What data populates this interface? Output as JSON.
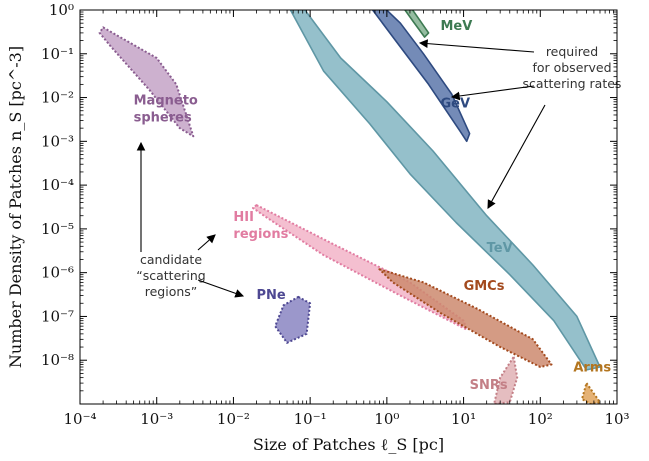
{
  "chart_data": {
    "type": "area",
    "xlabel": "Size of Patches ℓ_S [pc]",
    "ylabel": "Number Density of Patches n_S [pc^-3]",
    "xscale": "log",
    "yscale": "log",
    "xlim": [
      0.0001,
      1000
    ],
    "ylim": [
      1e-09,
      1
    ],
    "x_ticks": [
      {
        "label": "10⁻⁴",
        "value": 0.0001
      },
      {
        "label": "10⁻³",
        "value": 0.001
      },
      {
        "label": "10⁻²",
        "value": 0.01
      },
      {
        "label": "10⁻¹",
        "value": 0.1
      },
      {
        "label": "10⁰",
        "value": 1
      },
      {
        "label": "10¹",
        "value": 10
      },
      {
        "label": "10²",
        "value": 100
      },
      {
        "label": "10³",
        "value": 1000
      }
    ],
    "y_ticks": [
      {
        "label": "10⁰",
        "value": 1
      },
      {
        "label": "10⁻¹",
        "value": 0.1
      },
      {
        "label": "10⁻²",
        "value": 0.01
      },
      {
        "label": "10⁻³",
        "value": 0.001
      },
      {
        "label": "10⁻⁴",
        "value": 0.0001
      },
      {
        "label": "10⁻⁵",
        "value": 1e-05
      },
      {
        "label": "10⁻⁶",
        "value": 1e-06
      },
      {
        "label": "10⁻⁷",
        "value": 1e-07
      },
      {
        "label": "10⁻⁸",
        "value": 1e-08
      }
    ],
    "series": [
      {
        "name": "TeV",
        "kind": "required",
        "color": "#8fbdc8",
        "stroke": "#5f97a5",
        "points": [
          [
            0.07,
            1.6
          ],
          [
            0.25,
            0.08
          ],
          [
            1,
            0.008
          ],
          [
            4,
            0.0006
          ],
          [
            20,
            2e-05
          ],
          [
            80,
            1.5e-06
          ],
          [
            300,
            1e-07
          ],
          [
            600,
            7e-09
          ],
          [
            400,
            6e-09
          ],
          [
            150,
            8e-08
          ],
          [
            40,
            9e-07
          ],
          [
            8,
            1.4e-05
          ],
          [
            2,
            0.00018
          ],
          [
            0.6,
            0.0025
          ],
          [
            0.15,
            0.04
          ],
          [
            0.05,
            1.4
          ]
        ],
        "label_pos": [
          20,
          3e-06
        ]
      },
      {
        "name": "GeV",
        "kind": "required",
        "color": "#6d85b3",
        "stroke": "#2e4a80",
        "points": [
          [
            0.7,
            1.8
          ],
          [
            1.5,
            0.5
          ],
          [
            3,
            0.1
          ],
          [
            7,
            0.012
          ],
          [
            12,
            0.0015
          ],
          [
            11,
            0.001
          ],
          [
            9,
            0.0017
          ],
          [
            3.5,
            0.02
          ],
          [
            1.3,
            0.2
          ],
          [
            0.55,
            1.5
          ]
        ],
        "label_pos": [
          5,
          0.006
        ]
      },
      {
        "name": "MeV",
        "kind": "required",
        "color": "#8fb99c",
        "stroke": "#3d7a52",
        "points": [
          [
            1.8,
            1.6
          ],
          [
            2.5,
            0.7
          ],
          [
            3.5,
            0.3
          ],
          [
            3.1,
            0.24
          ],
          [
            2.2,
            0.55
          ],
          [
            1.5,
            1.4
          ]
        ],
        "label_pos": [
          5,
          0.35
        ]
      },
      {
        "name": "Magneto spheres",
        "kind": "candidate",
        "color": "#c4a3c7",
        "stroke": "#8a5d90",
        "points": [
          [
            0.0002,
            0.4
          ],
          [
            0.0004,
            0.2
          ],
          [
            0.001,
            0.08
          ],
          [
            0.0018,
            0.02
          ],
          [
            0.003,
            0.0013
          ],
          [
            0.002,
            0.002
          ],
          [
            0.0008,
            0.015
          ],
          [
            0.00025,
            0.15
          ],
          [
            0.00018,
            0.3
          ]
        ],
        "label_pos": [
          0.0005,
          0.007
        ]
      },
      {
        "name": "HII regions",
        "kind": "candidate",
        "color": "#f2b4c8",
        "stroke": "#e17ca1",
        "points": [
          [
            0.02,
            3.5e-05
          ],
          [
            0.2,
            4.5e-06
          ],
          [
            2,
            6e-07
          ],
          [
            10,
            8e-08
          ],
          [
            11,
            5e-08
          ],
          [
            1.5,
            3e-07
          ],
          [
            0.15,
            2.5e-06
          ],
          [
            0.025,
            2e-05
          ],
          [
            0.018,
            3e-05
          ]
        ],
        "label_pos": [
          0.01,
          1.5e-05
        ]
      },
      {
        "name": "GMCs",
        "kind": "candidate",
        "color": "#cc8a6e",
        "stroke": "#a34a1e",
        "points": [
          [
            0.8,
            1.2e-06
          ],
          [
            3,
            6e-07
          ],
          [
            15,
            1.5e-07
          ],
          [
            80,
            3e-08
          ],
          [
            140,
            8e-09
          ],
          [
            100,
            7e-09
          ],
          [
            30,
            2e-08
          ],
          [
            5,
            1.2e-07
          ],
          [
            1.2,
            6e-07
          ]
        ],
        "label_pos": [
          10,
          4e-07
        ]
      },
      {
        "name": "PNe",
        "kind": "candidate",
        "color": "#8a85c2",
        "stroke": "#4e4892",
        "points": [
          [
            0.07,
            2.8e-07
          ],
          [
            0.1,
            2e-07
          ],
          [
            0.09,
            4e-08
          ],
          [
            0.05,
            2.5e-08
          ],
          [
            0.035,
            6e-08
          ],
          [
            0.045,
            1.8e-07
          ]
        ],
        "label_pos": [
          0.02,
          2.5e-07
        ]
      },
      {
        "name": "SNRs",
        "kind": "candidate",
        "color": "#e0b1b5",
        "stroke": "#c37f86",
        "points": [
          [
            45,
            1.2e-08
          ],
          [
            50,
            4e-09
          ],
          [
            40,
            1.1e-09
          ],
          [
            25,
            1e-09
          ],
          [
            30,
            4e-09
          ]
        ],
        "label_pos": [
          12,
          2.2e-09
        ]
      },
      {
        "name": "Arms",
        "kind": "candidate",
        "color": "#e0a55d",
        "stroke": "#b3751f",
        "points": [
          [
            400,
            3e-09
          ],
          [
            600,
            1.1e-09
          ],
          [
            450,
            1e-09
          ],
          [
            350,
            1.3e-09
          ]
        ],
        "label_pos": [
          270,
          5.5e-09
        ]
      }
    ],
    "annotations": [
      {
        "id": "required",
        "lines": [
          "required",
          "for observed",
          "scattering rates"
        ]
      },
      {
        "id": "candidate",
        "lines": [
          "candidate",
          "“scattering",
          "regions”"
        ]
      }
    ]
  }
}
